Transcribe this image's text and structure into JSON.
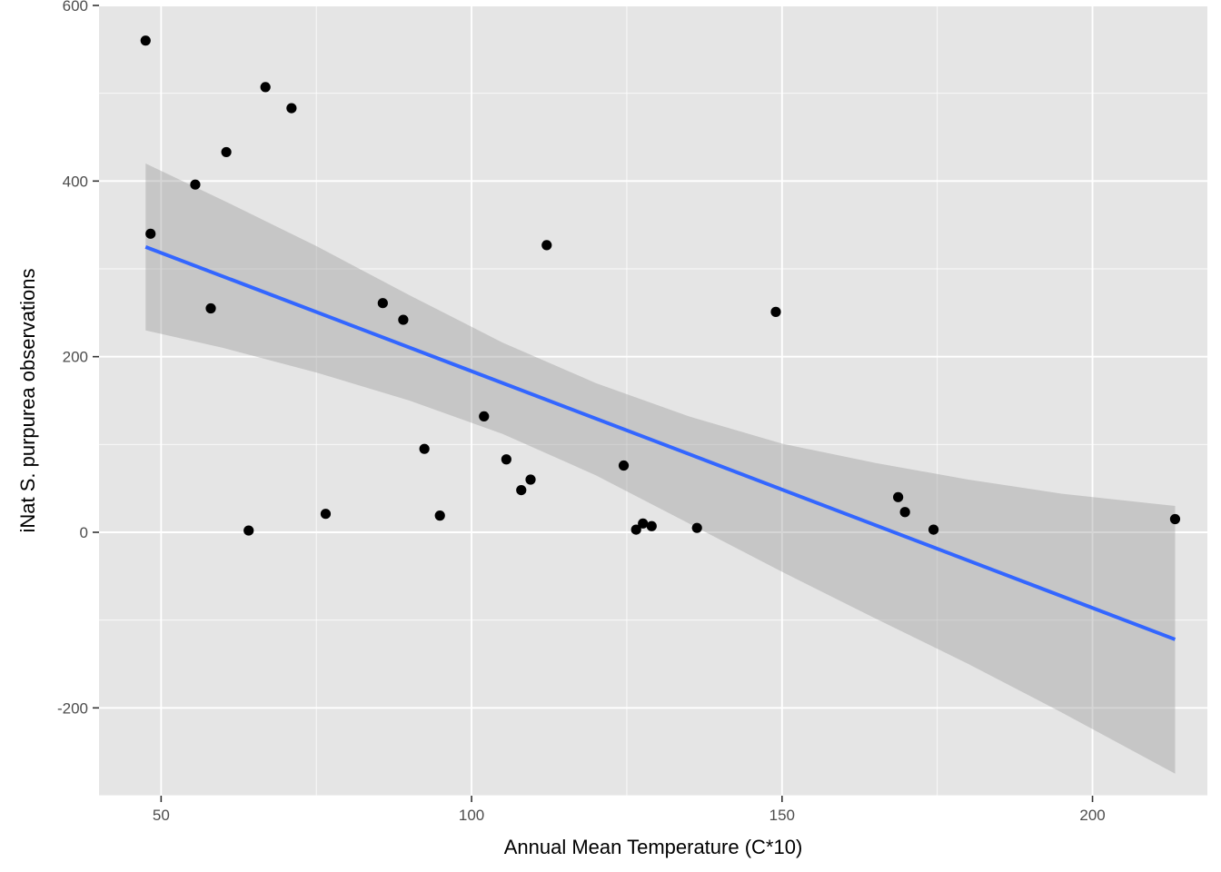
{
  "chart_data": {
    "type": "scatter",
    "title": "",
    "xlabel": "Annual Mean Temperature (C*10)",
    "ylabel": "iNat S. purpurea observations",
    "xlim": [
      40,
      218.5
    ],
    "ylim": [
      -300,
      600
    ],
    "x_ticks": [
      50,
      100,
      150,
      200
    ],
    "x_minor_ticks": [
      75,
      125,
      175
    ],
    "y_ticks": [
      -200,
      0,
      200,
      400,
      600
    ],
    "y_minor_ticks": [
      -300,
      -100,
      100,
      300,
      500
    ],
    "grid": true,
    "legend": "none",
    "colors": {
      "panel": "#e5e5e5",
      "grid": "#ffffff",
      "points": "#000000",
      "fit_line": "#3366ff",
      "confidence_band": "#999999"
    },
    "points": [
      {
        "x": 47.5,
        "y": 560
      },
      {
        "x": 48.3,
        "y": 340
      },
      {
        "x": 55.5,
        "y": 396
      },
      {
        "x": 58.0,
        "y": 255
      },
      {
        "x": 60.5,
        "y": 433
      },
      {
        "x": 64.1,
        "y": 2
      },
      {
        "x": 66.8,
        "y": 507
      },
      {
        "x": 71.0,
        "y": 483
      },
      {
        "x": 76.5,
        "y": 21
      },
      {
        "x": 85.7,
        "y": 261
      },
      {
        "x": 89.0,
        "y": 242
      },
      {
        "x": 92.4,
        "y": 95
      },
      {
        "x": 94.9,
        "y": 19
      },
      {
        "x": 102.0,
        "y": 132
      },
      {
        "x": 105.6,
        "y": 83
      },
      {
        "x": 108.0,
        "y": 48
      },
      {
        "x": 109.5,
        "y": 60
      },
      {
        "x": 112.1,
        "y": 327
      },
      {
        "x": 124.5,
        "y": 76
      },
      {
        "x": 126.5,
        "y": 3
      },
      {
        "x": 127.6,
        "y": 10
      },
      {
        "x": 129.0,
        "y": 7
      },
      {
        "x": 136.3,
        "y": 5
      },
      {
        "x": 149.0,
        "y": 251
      },
      {
        "x": 168.7,
        "y": 40
      },
      {
        "x": 169.8,
        "y": 23
      },
      {
        "x": 174.4,
        "y": 3
      },
      {
        "x": 213.3,
        "y": 15
      }
    ],
    "fit_line": {
      "x": [
        47.5,
        213.3
      ],
      "y": [
        325,
        -122
      ]
    },
    "confidence_band": {
      "x": [
        47.5,
        60,
        75,
        90,
        105,
        120,
        135,
        150,
        165,
        180,
        195,
        213.3
      ],
      "lower": [
        230,
        210,
        182,
        150,
        112,
        65,
        10,
        -45,
        -98,
        -150,
        -205,
        -275
      ],
      "upper": [
        420,
        378,
        326,
        270,
        216,
        170,
        132,
        101,
        79,
        60,
        44,
        30
      ]
    }
  }
}
